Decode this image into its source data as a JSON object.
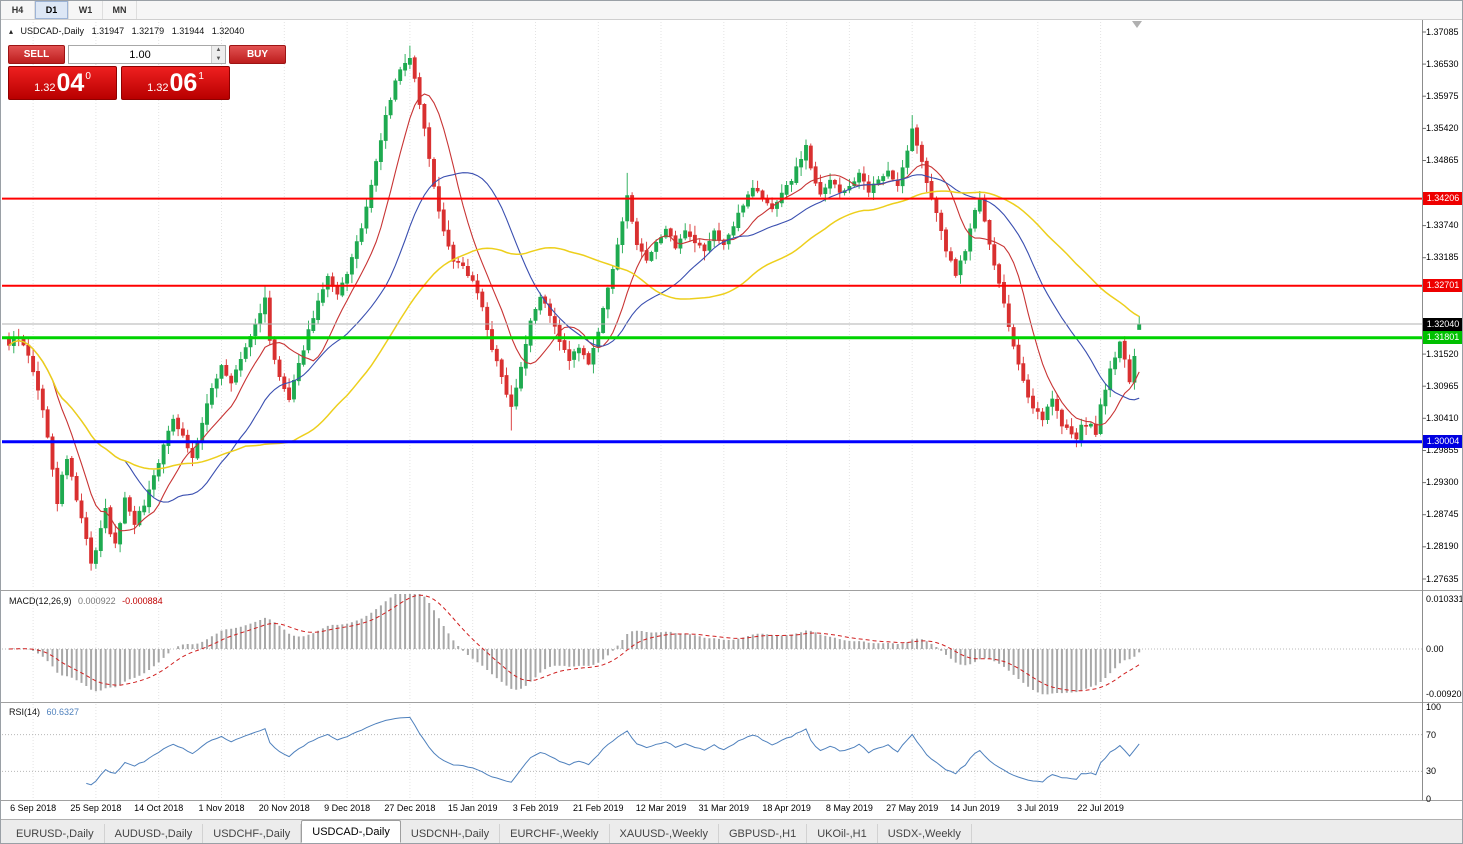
{
  "window": {
    "timeframe_toolbar": [
      {
        "label": "H4",
        "active": false
      },
      {
        "label": "D1",
        "active": true
      },
      {
        "label": "W1",
        "active": false
      },
      {
        "label": "MN",
        "active": false
      }
    ],
    "tabs": [
      {
        "label": "EURUSD-,Daily",
        "active": false
      },
      {
        "label": "AUDUSD-,Daily",
        "active": false
      },
      {
        "label": "USDCHF-,Daily",
        "active": false
      },
      {
        "label": "USDCAD-,Daily",
        "active": true
      },
      {
        "label": "USDCNH-,Daily",
        "active": false
      },
      {
        "label": "EURCHF-,Weekly",
        "active": false
      },
      {
        "label": "XAUUSD-,Weekly",
        "active": false
      },
      {
        "label": "GBPUSD-,H1",
        "active": false
      },
      {
        "label": "UKOil-,H1",
        "active": false
      },
      {
        "label": "USDX-,Weekly",
        "active": false
      }
    ]
  },
  "chart_header": {
    "marker": "▴",
    "symbol": "USDCAD-,Daily",
    "open": "1.31947",
    "high": "1.32179",
    "low": "1.31944",
    "close": "1.32040"
  },
  "trade_panel": {
    "sell_label": "SELL",
    "buy_label": "BUY",
    "volume": "1.00",
    "sell_price": {
      "main": "1.32",
      "pips": "04",
      "point": "0"
    },
    "buy_price": {
      "main": "1.32",
      "pips": "06",
      "point": "1"
    }
  },
  "indicators": {
    "macd": {
      "name": "MACD(12,26,9)",
      "value_main": "0.000922",
      "value_signal": "-0.000884"
    },
    "rsi": {
      "name": "RSI(14)",
      "value": "60.6327"
    }
  },
  "chart_data": {
    "type": "candlestick",
    "symbol": "USDCAD",
    "period": "Daily",
    "current_ohlc": {
      "open": 1.31947,
      "high": 1.32179,
      "low": 1.31944,
      "close": 1.3204
    },
    "y_axis_range": [
      1.2746,
      1.3731
    ],
    "y_ticks": [
      "1.37085",
      "1.36530",
      "1.35975",
      "1.35420",
      "1.34865",
      "1.33740",
      "1.33185",
      "1.31520",
      "1.30965",
      "1.30410",
      "1.29855",
      "1.29300",
      "1.28745",
      "1.28190",
      "1.27635"
    ],
    "price_tags": [
      {
        "text": "1.34206",
        "value": 1.34206,
        "color": "#ee0000"
      },
      {
        "text": "1.32701",
        "value": 1.32701,
        "color": "#ee0000"
      },
      {
        "text": "1.32040",
        "value": 1.3204,
        "color": "#000000"
      },
      {
        "text": "1.31801",
        "value": 1.31801,
        "color": "#00c000"
      },
      {
        "text": "1.30004",
        "value": 1.30004,
        "color": "#0000e0"
      }
    ],
    "hlines": [
      {
        "value": 1.3204,
        "color": "#b2b2b2",
        "width": 1
      },
      {
        "value": 1.34206,
        "color": "#ff0000",
        "width": 2
      },
      {
        "value": 1.32701,
        "color": "#ff0000",
        "width": 2
      },
      {
        "value": 1.31801,
        "color": "#00d300",
        "width": 3
      },
      {
        "value": 1.30004,
        "color": "#0000ff",
        "width": 3
      }
    ],
    "x_labels": [
      "6 Sep 2018",
      "25 Sep 2018",
      "14 Oct 2018",
      "1 Nov 2018",
      "20 Nov 2018",
      "9 Dec 2018",
      "27 Dec 2018",
      "15 Jan 2019",
      "3 Feb 2019",
      "21 Feb 2019",
      "12 Mar 2019",
      "31 Mar 2019",
      "18 Apr 2019",
      "8 May 2019",
      "27 May 2019",
      "14 Jun 2019",
      "3 Jul 2019",
      "22 Jul 2019"
    ],
    "close_anchors": [
      [
        0,
        1.317
      ],
      [
        2,
        1.3182
      ],
      [
        4,
        1.3148
      ],
      [
        6,
        1.3092
      ],
      [
        8,
        1.3012
      ],
      [
        10,
        1.2892
      ],
      [
        11,
        1.2942
      ],
      [
        12,
        1.2972
      ],
      [
        14,
        1.2902
      ],
      [
        16,
        1.2832
      ],
      [
        17,
        1.2792
      ],
      [
        18,
        1.2812
      ],
      [
        20,
        1.2882
      ],
      [
        21,
        1.2842
      ],
      [
        22,
        1.2822
      ],
      [
        24,
        1.2902
      ],
      [
        26,
        1.2862
      ],
      [
        28,
        1.2892
      ],
      [
        30,
        1.2942
      ],
      [
        32,
        1.2992
      ],
      [
        34,
        1.3042
      ],
      [
        36,
        1.3012
      ],
      [
        38,
        1.2972
      ],
      [
        40,
        1.3032
      ],
      [
        42,
        1.3092
      ],
      [
        44,
        1.3132
      ],
      [
        46,
        1.3102
      ],
      [
        48,
        1.3142
      ],
      [
        50,
        1.3182
      ],
      [
        52,
        1.3222
      ],
      [
        53,
        1.3252
      ],
      [
        54,
        1.3172
      ],
      [
        56,
        1.3112
      ],
      [
        58,
        1.3072
      ],
      [
        60,
        1.3132
      ],
      [
        62,
        1.3192
      ],
      [
        64,
        1.3242
      ],
      [
        66,
        1.3282
      ],
      [
        68,
        1.3252
      ],
      [
        70,
        1.3292
      ],
      [
        72,
        1.3342
      ],
      [
        74,
        1.3402
      ],
      [
        76,
        1.3482
      ],
      [
        78,
        1.3562
      ],
      [
        80,
        1.3622
      ],
      [
        82,
        1.3658
      ],
      [
        83,
        1.3662
      ],
      [
        84,
        1.3628
      ],
      [
        86,
        1.3542
      ],
      [
        88,
        1.3442
      ],
      [
        90,
        1.3362
      ],
      [
        92,
        1.3312
      ],
      [
        94,
        1.3302
      ],
      [
        96,
        1.3282
      ],
      [
        98,
        1.3232
      ],
      [
        100,
        1.3162
      ],
      [
        102,
        1.3112
      ],
      [
        104,
        1.3062
      ],
      [
        106,
        1.3132
      ],
      [
        108,
        1.3212
      ],
      [
        110,
        1.3252
      ],
      [
        112,
        1.3222
      ],
      [
        114,
        1.3172
      ],
      [
        116,
        1.3142
      ],
      [
        118,
        1.3162
      ],
      [
        120,
        1.3132
      ],
      [
        122,
        1.3192
      ],
      [
        124,
        1.3262
      ],
      [
        126,
        1.3342
      ],
      [
        128,
        1.3422
      ],
      [
        130,
        1.3342
      ],
      [
        132,
        1.3312
      ],
      [
        134,
        1.3342
      ],
      [
        136,
        1.3372
      ],
      [
        138,
        1.3332
      ],
      [
        140,
        1.3362
      ],
      [
        142,
        1.3342
      ],
      [
        144,
        1.3332
      ],
      [
        146,
        1.3362
      ],
      [
        148,
        1.3342
      ],
      [
        150,
        1.3372
      ],
      [
        152,
        1.3412
      ],
      [
        154,
        1.3442
      ],
      [
        156,
        1.3422
      ],
      [
        158,
        1.3402
      ],
      [
        160,
        1.3432
      ],
      [
        162,
        1.3452
      ],
      [
        164,
        1.3492
      ],
      [
        165,
        1.3512
      ],
      [
        166,
        1.3472
      ],
      [
        168,
        1.3432
      ],
      [
        170,
        1.3452
      ],
      [
        172,
        1.3432
      ],
      [
        174,
        1.3442
      ],
      [
        176,
        1.3462
      ],
      [
        178,
        1.3432
      ],
      [
        180,
        1.3452
      ],
      [
        182,
        1.3472
      ],
      [
        184,
        1.3442
      ],
      [
        186,
        1.3502
      ],
      [
        187,
        1.3542
      ],
      [
        188,
        1.3512
      ],
      [
        190,
        1.3452
      ],
      [
        192,
        1.3392
      ],
      [
        194,
        1.3332
      ],
      [
        196,
        1.3292
      ],
      [
        198,
        1.3332
      ],
      [
        200,
        1.3402
      ],
      [
        201,
        1.3418
      ],
      [
        202,
        1.3382
      ],
      [
        204,
        1.3302
      ],
      [
        206,
        1.3242
      ],
      [
        208,
        1.3162
      ],
      [
        210,
        1.3102
      ],
      [
        212,
        1.3062
      ],
      [
        214,
        1.3042
      ],
      [
        216,
        1.3072
      ],
      [
        218,
        1.3032
      ],
      [
        220,
        1.3012
      ],
      [
        221,
        1.3002
      ],
      [
        222,
        1.3032
      ],
      [
        224,
        1.3032
      ],
      [
        225,
        1.3012
      ],
      [
        226,
        1.3062
      ],
      [
        228,
        1.3122
      ],
      [
        230,
        1.3172
      ],
      [
        231,
        1.3142
      ],
      [
        232,
        1.3102
      ],
      [
        233,
        1.3152
      ],
      [
        234,
        1.3204
      ]
    ],
    "wick_extremes": [
      [
        17,
        "low",
        1.2778
      ],
      [
        53,
        "high",
        1.327
      ],
      [
        83,
        "high",
        1.3685
      ],
      [
        104,
        "low",
        1.302
      ],
      [
        128,
        "high",
        1.3465
      ],
      [
        187,
        "high",
        1.3565
      ],
      [
        221,
        "low",
        1.2991
      ]
    ],
    "moving_averages": [
      {
        "period": 10,
        "color": "#c83434",
        "width": 1.1
      },
      {
        "period": 25,
        "color": "#3a4fb0",
        "width": 1.1
      },
      {
        "period": 50,
        "color": "#edcf1c",
        "width": 1.5
      }
    ],
    "macd_panel": {
      "fast": 12,
      "slow": 26,
      "signal": 9,
      "y_ticks": [
        "0.010331",
        "0.00",
        "-0.009203"
      ],
      "tick_values": [
        0.010331,
        0,
        -0.009203
      ],
      "hist_color": "#a8a8a8",
      "signal_color": "#d02020"
    },
    "rsi_panel": {
      "period": 14,
      "y_ticks": [
        "100",
        "70",
        "30",
        "0"
      ],
      "tick_values": [
        100,
        70,
        30,
        0
      ],
      "dotted_levels": [
        70,
        30
      ],
      "color": "#4f81bd"
    },
    "candle_up_color": "#1faa50",
    "candle_down_color": "#d93030",
    "grid_color": "#e3e3e3"
  }
}
